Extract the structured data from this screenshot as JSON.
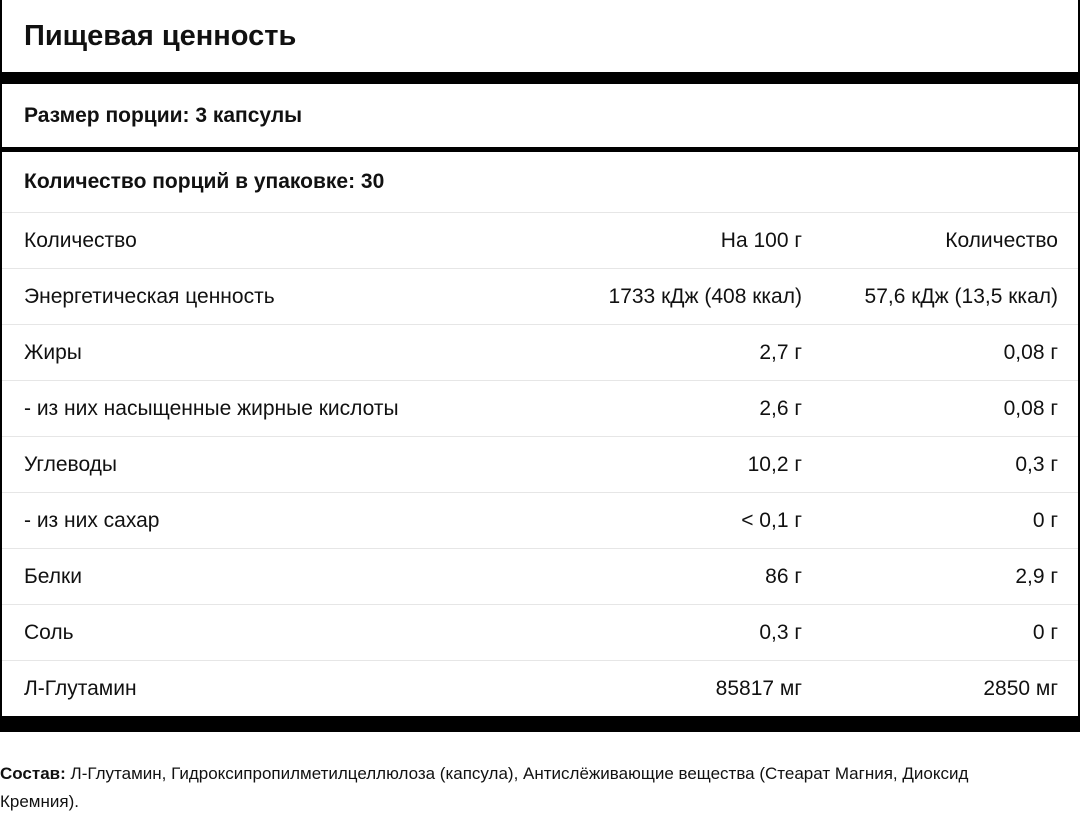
{
  "header": {
    "title": "Пищевая ценность",
    "serving_size": "Размер порции: 3 капсулы",
    "servings_per_container": "Количество порций в упаковке: 30"
  },
  "table": {
    "columns": [
      "Количество",
      "На 100 г",
      "Количество"
    ],
    "rows": [
      [
        "Энергетическая ценность",
        "1733 кДж (408 ккал)",
        "57,6 кДж (13,5 ккал)"
      ],
      [
        "Жиры",
        "2,7 г",
        "0,08 г"
      ],
      [
        "- из них насыщенные жирные кислоты",
        "2,6 г",
        "0,08 г"
      ],
      [
        "Углеводы",
        "10,2 г",
        "0,3 г"
      ],
      [
        "- из них сахар",
        "< 0,1 г",
        "0 г"
      ],
      [
        "Белки",
        "86 г",
        "2,9 г"
      ],
      [
        "Соль",
        "0,3 г",
        "0 г"
      ],
      [
        "Л-Глутамин",
        "85817 мг",
        "2850 мг"
      ]
    ]
  },
  "composition": {
    "label": "Состав:",
    "text": "Л-Глутамин, Гидроксипропилметилцеллюлоза (капсула), Антислёживающие вещества (Стеарат Магния, Диоксид Кремния)."
  }
}
